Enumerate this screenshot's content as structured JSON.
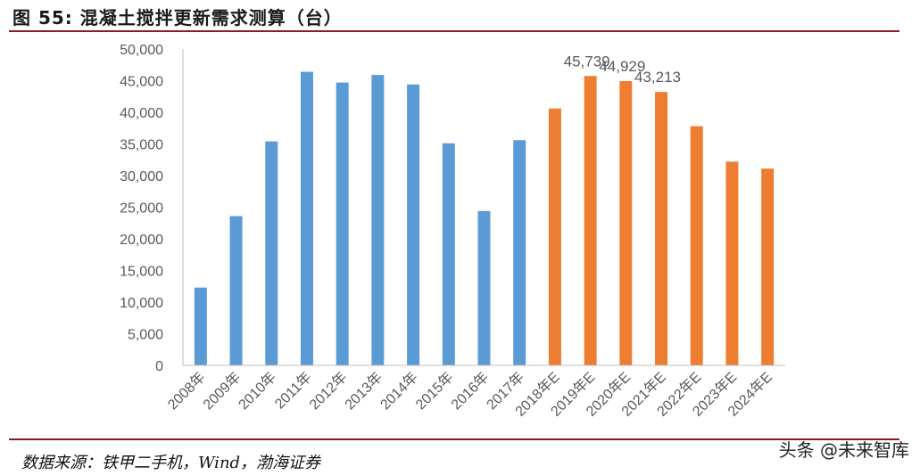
{
  "title": "图 55:  混凝土搅拌更新需求测算（台）",
  "source": "数据来源：铁甲二手机，Wind，渤海证券",
  "watermark": "头条 @未来智库",
  "colors": {
    "actual": "#5b9bd5",
    "estimate": "#ed7d31",
    "rule": "#8b1c1c"
  },
  "chart_data": {
    "type": "bar",
    "title": "混凝土搅拌更新需求测算（台）",
    "xlabel": "",
    "ylabel": "",
    "ylim": [
      0,
      50000
    ],
    "yticks": [
      "0",
      "5,000",
      "10,000",
      "15,000",
      "20,000",
      "25,000",
      "30,000",
      "35,000",
      "40,000",
      "45,000",
      "50,000"
    ],
    "grid": false,
    "legend": "none",
    "categories": [
      "2008年",
      "2009年",
      "2010年",
      "2011年",
      "2012年",
      "2013年",
      "2014年",
      "2015年",
      "2016年",
      "2017年",
      "2018年E",
      "2019年E",
      "2020年E",
      "2021年E",
      "2022年E",
      "2023年E",
      "2024年E"
    ],
    "values": [
      12300,
      23600,
      35400,
      46400,
      44700,
      45900,
      44400,
      35100,
      24400,
      35600,
      40600,
      45739,
      44929,
      43213,
      37800,
      32200,
      31100
    ],
    "estimate": [
      false,
      false,
      false,
      false,
      false,
      false,
      false,
      false,
      false,
      false,
      true,
      true,
      true,
      true,
      true,
      true,
      true
    ],
    "data_labels": [
      "",
      "",
      "",
      "",
      "",
      "",
      "",
      "",
      "",
      "",
      "",
      "45,739",
      "44,929",
      "43,213",
      "",
      "",
      ""
    ]
  }
}
